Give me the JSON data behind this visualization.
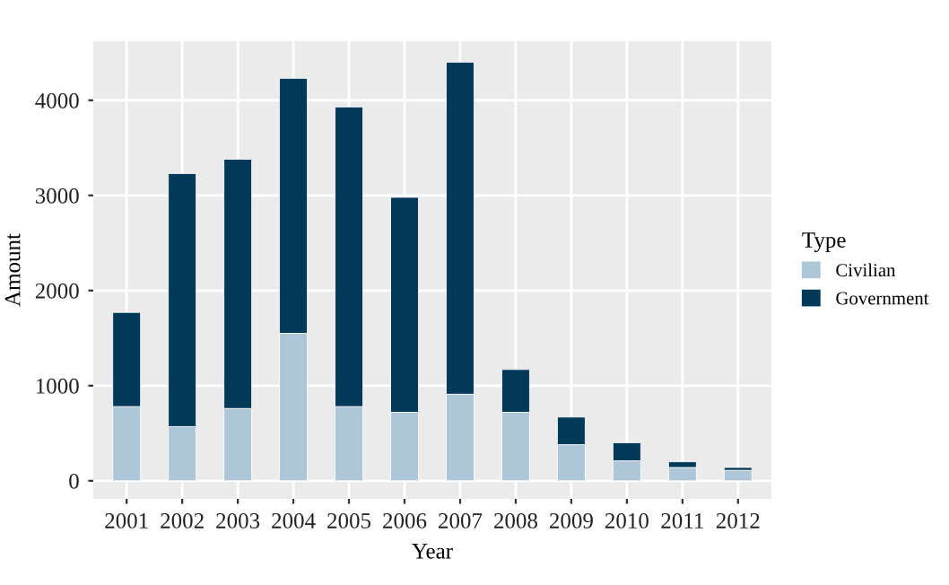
{
  "chart_data": {
    "type": "bar",
    "stacked": true,
    "xlabel": "Year",
    "ylabel": "Amount",
    "legend_title": "Type",
    "legend": "right",
    "categories": [
      "2001",
      "2002",
      "2003",
      "2004",
      "2005",
      "2006",
      "2007",
      "2008",
      "2009",
      "2010",
      "2011",
      "2012"
    ],
    "series": [
      {
        "name": "Civilian",
        "color": "#adc6d8",
        "values": [
          780,
          570,
          760,
          1550,
          780,
          720,
          910,
          720,
          380,
          210,
          140,
          110
        ]
      },
      {
        "name": "Government",
        "color": "#023858",
        "values": [
          990,
          2660,
          2620,
          2680,
          3150,
          2260,
          3490,
          450,
          290,
          190,
          60,
          30
        ]
      }
    ],
    "ylim": [
      -190,
      4620
    ],
    "yticks": [
      0,
      1000,
      2000,
      3000,
      4000
    ],
    "grid": true
  }
}
